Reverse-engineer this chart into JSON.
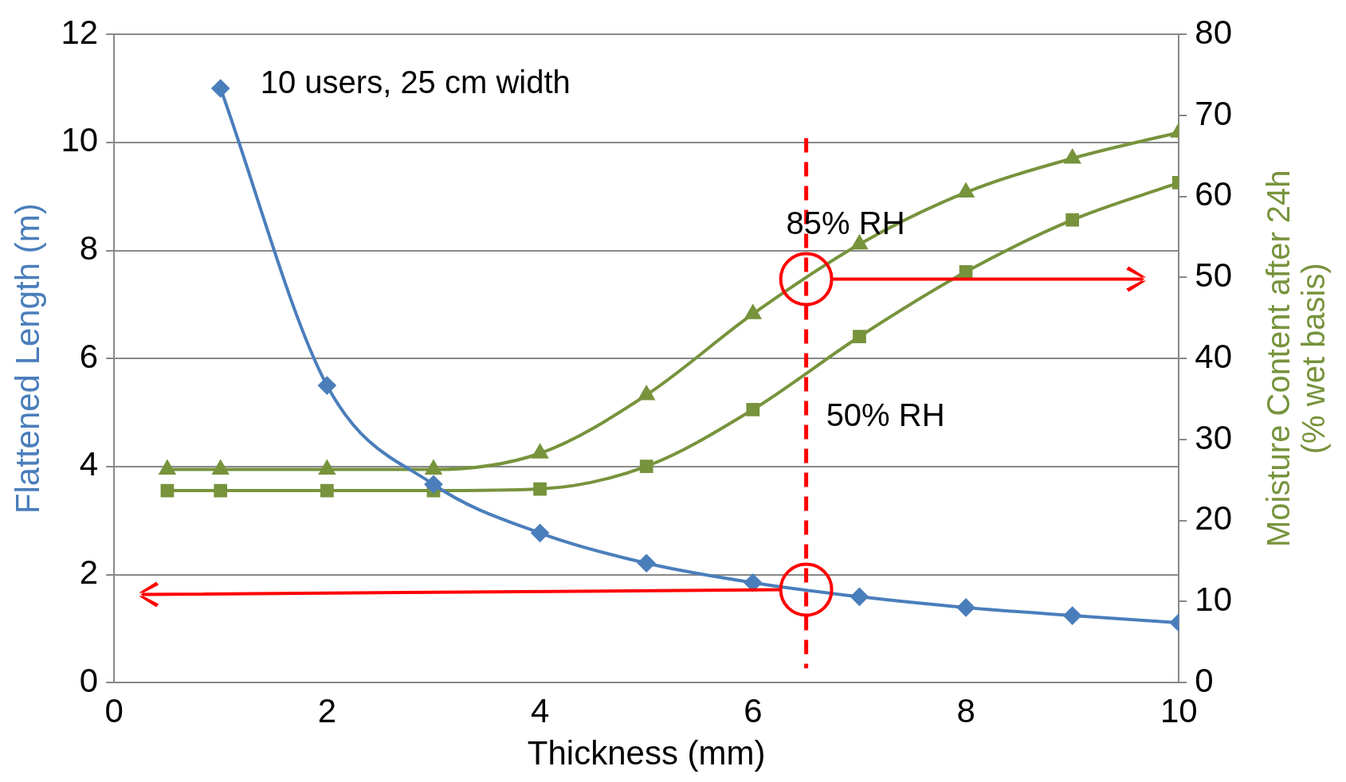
{
  "chart_data": {
    "type": "line",
    "xlabel": "Thickness (mm)",
    "ylabel": "Flattened Length (m)",
    "y2label": "Moisture Content after 24h\n(% wet basis)",
    "xlim": [
      0,
      10
    ],
    "xticks": [
      0,
      2,
      4,
      6,
      8,
      10
    ],
    "ylim": [
      0,
      12
    ],
    "yticks": [
      0,
      2,
      4,
      6,
      8,
      10,
      12
    ],
    "y2lim": [
      0,
      80
    ],
    "y2ticks": [
      0,
      10,
      20,
      30,
      40,
      50,
      60,
      70,
      80
    ],
    "grid": "y",
    "legend": false,
    "series": [
      {
        "color": "#4a7ebb",
        "marker": "diamond",
        "x": [
          1,
          2,
          3,
          4,
          5,
          6,
          7,
          8,
          9,
          10
        ],
        "values": [
          11,
          5.5,
          3.67,
          2.77,
          2.21,
          1.85,
          1.59,
          1.39,
          1.24,
          1.11
        ]
      },
      {
        "color": "#77933c",
        "marker": "triangle",
        "axis": "y2",
        "x": [
          0.5,
          1,
          2,
          3,
          4,
          5,
          6,
          7,
          8,
          9,
          10
        ],
        "values": [
          26.3,
          26.3,
          26.3,
          26.3,
          28.3,
          35.5,
          45.5,
          54.1,
          60.5,
          64.7,
          67.9
        ]
      },
      {
        "color": "#77933c",
        "marker": "square",
        "axis": "y2",
        "x": [
          0.5,
          1,
          2,
          3,
          4,
          5,
          6,
          7,
          8,
          9,
          10
        ],
        "values": [
          23.7,
          23.7,
          23.7,
          23.7,
          23.9,
          26.7,
          33.7,
          42.7,
          50.7,
          57.1,
          61.7
        ]
      }
    ],
    "ref_lines": [
      {
        "axis": "x",
        "value": 6.5,
        "color": "#ff0000",
        "line_style": "dashed"
      }
    ],
    "annotations": [
      "10 users, 25 cm width",
      "85% RH",
      "50% RH"
    ]
  }
}
